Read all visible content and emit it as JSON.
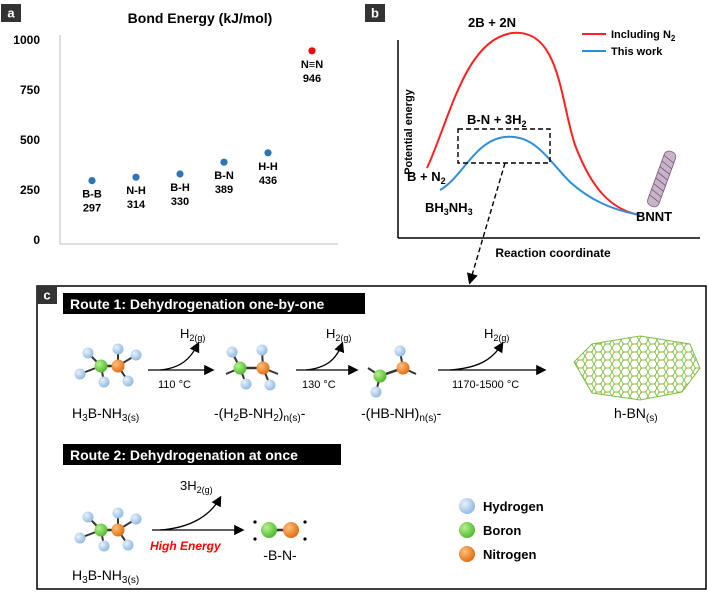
{
  "panel_a": {
    "label": "a",
    "chart_data": {
      "type": "scatter",
      "title": "Bond Energy (kJ/mol)",
      "xlabel": "",
      "ylabel": "",
      "ylim": [
        0,
        1000
      ],
      "yticks": [
        "0",
        "250",
        "500",
        "750",
        "1000"
      ],
      "points": [
        {
          "bond": "B-B",
          "value": 297,
          "color": "#2e75b6"
        },
        {
          "bond": "N-H",
          "value": 314,
          "color": "#2e75b6"
        },
        {
          "bond": "B-H",
          "value": 330,
          "color": "#2e75b6"
        },
        {
          "bond": "B-N",
          "value": 389,
          "color": "#2e75b6"
        },
        {
          "bond": "H-H",
          "value": 436,
          "color": "#2e75b6"
        },
        {
          "bond": "N≡N",
          "value": 946,
          "color": "#ff0000"
        }
      ]
    },
    "value_labels": [
      "297",
      "314",
      "330",
      "389",
      "436",
      "946"
    ]
  },
  "panel_b": {
    "label": "b",
    "ylabel": "Potential energy",
    "xlabel": "Reaction coordinate",
    "peak_top": "2B + 2N",
    "peak_mid": "B-N + 3H",
    "peak_mid_sub": "2",
    "reactant_red": "B + N",
    "reactant_red_sub": "2",
    "reactant_blue": "BH",
    "reactant_blue_sub1": "3",
    "reactant_blue_mid": "NH",
    "reactant_blue_sub2": "3",
    "product": "BNNT",
    "legend": [
      {
        "label": "Including N",
        "sub": "2",
        "color": "#ff0000"
      },
      {
        "label": "This work",
        "sub": "",
        "color": "#2e8fd6"
      }
    ]
  },
  "panel_c": {
    "label": "c",
    "route1": {
      "title": "Route 1: Dehydrogenation one-by-one",
      "h2_label": "H",
      "h2_sub": "2(g)",
      "conditions": [
        "110 °C",
        "130 °C",
        "1170-1500 °C"
      ],
      "species": {
        "s1_a": "H",
        "s1_b": "3",
        "s1_c": "B-NH",
        "s1_d": "3(s)",
        "s2_a": "-(H",
        "s2_b": "2",
        "s2_c": "B-NH",
        "s2_d": "2",
        "s2_e": ")",
        "s2_f": "n(s)",
        "s2_g": "-",
        "s3_a": "-(HB-NH)",
        "s3_b": "n(s)",
        "s3_c": "-",
        "s4_a": "h-BN",
        "s4_b": "(s)"
      }
    },
    "route2": {
      "title": "Route 2: Dehydrogenation at once",
      "h2_label": "3H",
      "h2_sub": "2(g)",
      "condition": "High Energy",
      "species_a": "H",
      "species_b": "3",
      "species_c": "B-NH",
      "species_d": "3(s)",
      "product": "-B-N-"
    },
    "legend": [
      {
        "label": "Hydrogen",
        "color": "#9dc3e6"
      },
      {
        "label": "Boron",
        "color": "#5ec736"
      },
      {
        "label": "Nitrogen",
        "color": "#ee7d22"
      }
    ]
  }
}
